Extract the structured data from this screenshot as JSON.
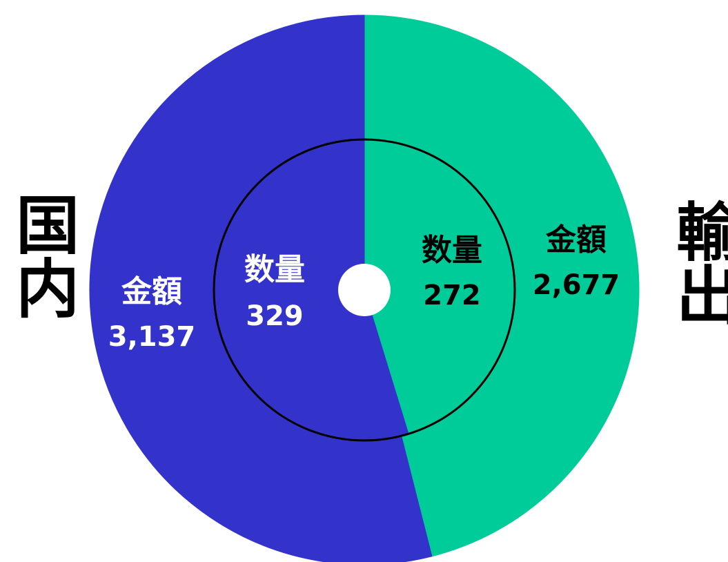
{
  "chart_data": {
    "type": "pie",
    "categories": [
      "輸出",
      "国内"
    ],
    "colors": [
      "#00cc99",
      "#3333cc"
    ],
    "label_colors": [
      "#000000",
      "#ffffff"
    ],
    "series": [
      {
        "name": "金額",
        "values": [
          2677,
          3137
        ],
        "value_labels": [
          "2,677",
          "3,137"
        ]
      },
      {
        "name": "数量",
        "values": [
          272,
          329
        ]
      }
    ]
  }
}
